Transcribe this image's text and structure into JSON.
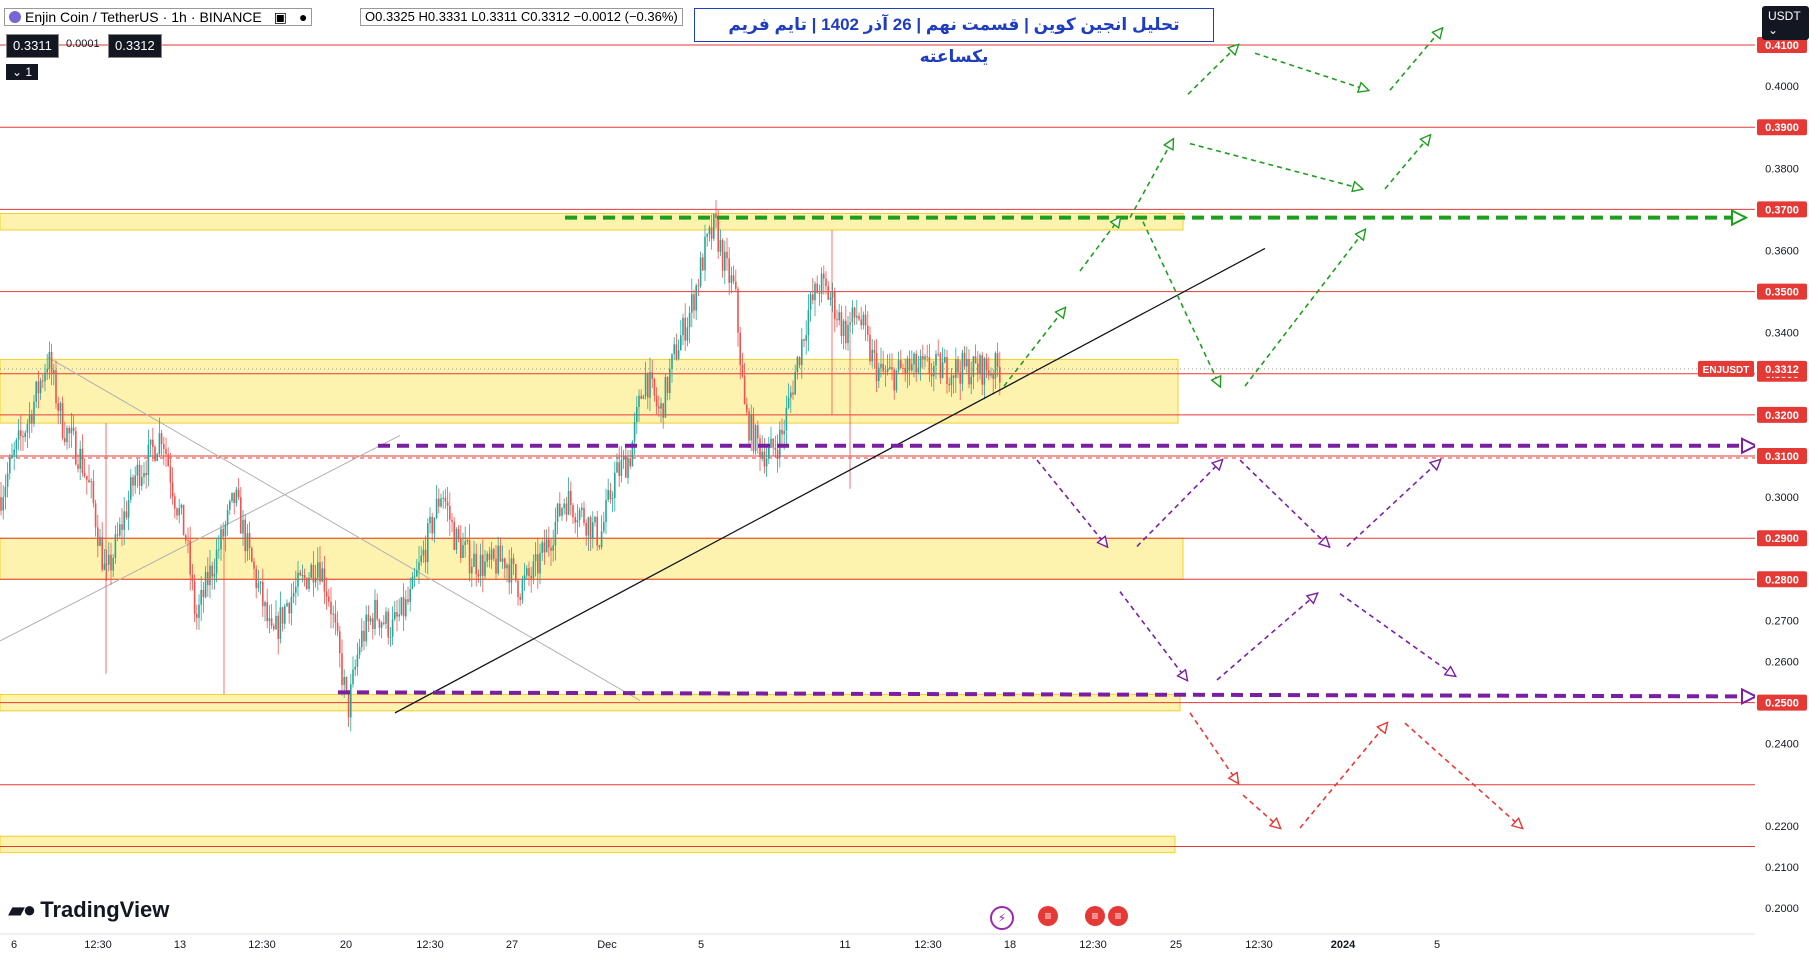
{
  "header": {
    "symbol": "Enjin Coin / TetherUS",
    "interval": "1h",
    "exchange": "BINANCE",
    "ohlc": "O0.3325 H0.3331 L0.3311 C0.3312 −0.0012 (−0.36%)",
    "bid": "0.3311",
    "spread": "0.0001",
    "ask": "0.3312",
    "layers": "1",
    "currency": "USDT"
  },
  "title": "تحلیل انجین کوین | قسمت نهم | 26 آذر 1402 | تایم فریم یکساعته",
  "logo": "TradingView",
  "colors": {
    "zone": "#fde96b",
    "level": "#e53935",
    "green": "#1e9e1e",
    "purple": "#7b1fa2",
    "red": "#e53935",
    "up": "#26a69a",
    "down": "#ef5350"
  },
  "chart_data": {
    "type": "candlestick",
    "title": "",
    "symbol_label": "ENJUSDT",
    "last_price": 0.3312,
    "ylim": [
      0.195,
      0.423
    ],
    "y_ticks": [
      0.2,
      0.21,
      0.22,
      0.24,
      0.25,
      0.26,
      0.27,
      0.28,
      0.29,
      0.3,
      0.31,
      0.32,
      0.33,
      0.34,
      0.35,
      0.36,
      0.37,
      0.38,
      0.39,
      0.4,
      0.41
    ],
    "marked_levels": [
      0.41,
      0.39,
      0.37,
      0.35,
      0.33,
      0.32,
      0.31,
      0.29,
      0.28,
      0.25,
      0.23,
      0.215
    ],
    "x_ticks": [
      "6",
      "12:30",
      "13",
      "12:30",
      "20",
      "12:30",
      "27",
      "Dec",
      "5",
      "11",
      "12:30",
      "18",
      "12:30",
      "25",
      "12:30",
      "2024",
      "5"
    ],
    "zones": [
      [
        0.365,
        0.369
      ],
      [
        0.318,
        0.3335
      ],
      [
        0.28,
        0.29
      ],
      [
        0.248,
        0.252
      ],
      [
        0.2135,
        0.2175
      ]
    ],
    "price_path": [
      [
        0,
        0.3
      ],
      [
        14,
        0.31
      ],
      [
        30,
        0.32
      ],
      [
        48,
        0.334
      ],
      [
        62,
        0.318
      ],
      [
        80,
        0.31
      ],
      [
        92,
        0.3
      ],
      [
        106,
        0.28
      ],
      [
        118,
        0.29
      ],
      [
        135,
        0.305
      ],
      [
        150,
        0.31
      ],
      [
        162,
        0.316
      ],
      [
        175,
        0.3
      ],
      [
        186,
        0.29
      ],
      [
        196,
        0.27
      ],
      [
        208,
        0.28
      ],
      [
        222,
        0.29
      ],
      [
        235,
        0.3
      ],
      [
        250,
        0.285
      ],
      [
        262,
        0.275
      ],
      [
        272,
        0.265
      ],
      [
        288,
        0.275
      ],
      [
        305,
        0.28
      ],
      [
        318,
        0.285
      ],
      [
        330,
        0.275
      ],
      [
        340,
        0.26
      ],
      [
        348,
        0.248
      ],
      [
        360,
        0.265
      ],
      [
        375,
        0.272
      ],
      [
        392,
        0.268
      ],
      [
        410,
        0.275
      ],
      [
        428,
        0.29
      ],
      [
        442,
        0.302
      ],
      [
        455,
        0.29
      ],
      [
        470,
        0.285
      ],
      [
        488,
        0.283
      ],
      [
        505,
        0.285
      ],
      [
        520,
        0.278
      ],
      [
        535,
        0.282
      ],
      [
        550,
        0.29
      ],
      [
        565,
        0.3
      ],
      [
        585,
        0.295
      ],
      [
        600,
        0.29
      ],
      [
        615,
        0.305
      ],
      [
        630,
        0.31
      ],
      [
        645,
        0.33
      ],
      [
        660,
        0.32
      ],
      [
        675,
        0.335
      ],
      [
        690,
        0.345
      ],
      [
        705,
        0.36
      ],
      [
        715,
        0.366
      ],
      [
        725,
        0.356
      ],
      [
        735,
        0.35
      ],
      [
        745,
        0.32
      ],
      [
        755,
        0.314
      ],
      [
        768,
        0.31
      ],
      [
        782,
        0.315
      ],
      [
        795,
        0.33
      ],
      [
        808,
        0.345
      ],
      [
        820,
        0.352
      ],
      [
        832,
        0.348
      ],
      [
        845,
        0.34
      ],
      [
        858,
        0.345
      ],
      [
        870,
        0.335
      ],
      [
        880,
        0.33
      ],
      [
        892,
        0.3295
      ],
      [
        905,
        0.3312
      ]
    ],
    "support_trendline": [
      [
        395,
        0.2475
      ],
      [
        1265,
        0.3605
      ]
    ],
    "guide_lines": [
      [
        [
          48,
          0.334
        ],
        [
          640,
          0.2505
        ]
      ],
      [
        [
          0,
          0.265
        ],
        [
          400,
          0.315
        ]
      ]
    ],
    "key_lines": [
      {
        "color": "green",
        "from": [
          565,
          0.368
        ],
        "to": [
          1745,
          0.368
        ]
      },
      {
        "color": "purple",
        "from": [
          378,
          0.3125
        ],
        "to": [
          1755,
          0.3125
        ]
      },
      {
        "color": "purple",
        "from": [
          338,
          0.2525
        ],
        "to": [
          1755,
          0.2515
        ]
      }
    ],
    "scenario_arrows": [
      {
        "color": "green",
        "from": [
          1004,
          0.327
        ],
        "to": [
          1065,
          0.346
        ]
      },
      {
        "color": "green",
        "from": [
          1080,
          0.355
        ],
        "to": [
          1120,
          0.368
        ]
      },
      {
        "color": "green",
        "from": [
          1130,
          0.368
        ],
        "to": [
          1173,
          0.387
        ]
      },
      {
        "color": "green",
        "from": [
          1188,
          0.398
        ],
        "to": [
          1238,
          0.41
        ]
      },
      {
        "color": "green",
        "from": [
          1255,
          0.408
        ],
        "to": [
          1368,
          0.399
        ]
      },
      {
        "color": "green",
        "from": [
          1390,
          0.399
        ],
        "to": [
          1442,
          0.414
        ]
      },
      {
        "color": "green",
        "from": [
          1190,
          0.386
        ],
        "to": [
          1362,
          0.375
        ]
      },
      {
        "color": "green",
        "from": [
          1385,
          0.375
        ],
        "to": [
          1430,
          0.388
        ]
      },
      {
        "color": "green",
        "from": [
          1143,
          0.367
        ],
        "to": [
          1220,
          0.327
        ]
      },
      {
        "color": "green",
        "from": [
          1245,
          0.327
        ],
        "to": [
          1365,
          0.365
        ]
      },
      {
        "color": "purple",
        "from": [
          1037,
          0.309
        ],
        "to": [
          1107,
          0.288
        ]
      },
      {
        "color": "purple",
        "from": [
          1137,
          0.288
        ],
        "to": [
          1222,
          0.309
        ]
      },
      {
        "color": "purple",
        "from": [
          1240,
          0.309
        ],
        "to": [
          1329,
          0.288
        ]
      },
      {
        "color": "purple",
        "from": [
          1347,
          0.288
        ],
        "to": [
          1440,
          0.309
        ]
      },
      {
        "color": "purple",
        "from": [
          1120,
          0.277
        ],
        "to": [
          1187,
          0.2555
        ]
      },
      {
        "color": "purple",
        "from": [
          1217,
          0.2555
        ],
        "to": [
          1317,
          0.2765
        ]
      },
      {
        "color": "purple",
        "from": [
          1340,
          0.2765
        ],
        "to": [
          1455,
          0.2565
        ]
      },
      {
        "color": "red",
        "from": [
          1190,
          0.2475
        ],
        "to": [
          1238,
          0.2305
        ]
      },
      {
        "color": "red",
        "from": [
          1243,
          0.2275
        ],
        "to": [
          1280,
          0.2195
        ]
      },
      {
        "color": "red",
        "from": [
          1300,
          0.2195
        ],
        "to": [
          1387,
          0.245
        ]
      },
      {
        "color": "red",
        "from": [
          1405,
          0.245
        ],
        "to": [
          1522,
          0.2195
        ]
      }
    ],
    "event_icons": [
      "lightning-icon",
      "us-flag-icon",
      "us-flag-icon",
      "us-flag-icon"
    ]
  }
}
